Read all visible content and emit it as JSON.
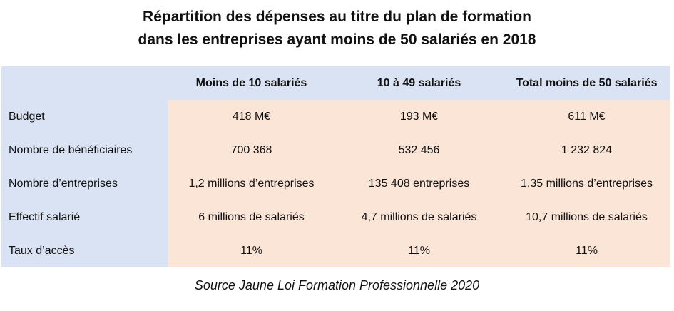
{
  "title": {
    "line1": "Répartition des dépenses au titre du plan de formation",
    "line2": "dans les entreprises ayant moins de 50 salariés en 2018"
  },
  "table": {
    "columns": [
      "Moins de 10 salariés",
      "10 à 49 salariés",
      "Total moins de 50 salariés"
    ],
    "rows": [
      {
        "label": "Budget",
        "values": [
          "418 M€",
          "193 M€",
          "611 M€"
        ]
      },
      {
        "label": "Nombre de bénéficiaires",
        "values": [
          "700 368",
          "532 456",
          "1 232 824"
        ]
      },
      {
        "label": "Nombre d’entreprises",
        "values": [
          "1,2 millions d’entreprises",
          "135 408 entreprises",
          "1,35 millions d’entreprises"
        ]
      },
      {
        "label": "Effectif salarié",
        "values": [
          "6 millions de salariés",
          "4,7 millions de salariés",
          "10,7 millions de salariés"
        ]
      },
      {
        "label": "Taux d’accès",
        "values": [
          "11%",
          "11%",
          "11%"
        ]
      }
    ]
  },
  "source": "Source Jaune Loi Formation Professionnelle 2020",
  "colors": {
    "header_bg": "#dae3f3",
    "body_bg": "#fbe5d6"
  }
}
